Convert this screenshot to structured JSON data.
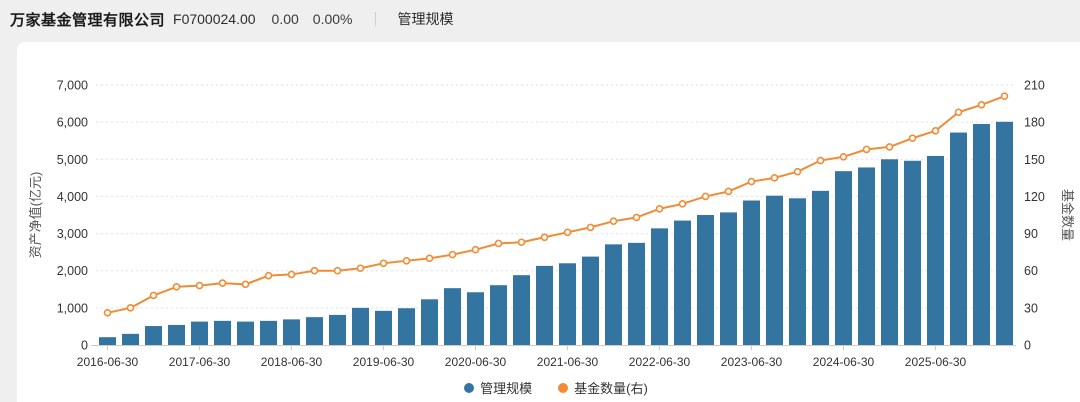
{
  "header": {
    "company": "万家基金管理有限公司",
    "code": "F0700024.00",
    "value": "0.00",
    "change_pct": "0.00%",
    "tab": "管理规模"
  },
  "chart_data": {
    "type": "combo",
    "categories": [
      "2016-06-30",
      "2016-09-30",
      "2016-12-31",
      "2017-03-31",
      "2017-06-30",
      "2017-09-30",
      "2017-12-31",
      "2018-03-31",
      "2018-06-30",
      "2018-09-30",
      "2018-12-31",
      "2019-03-31",
      "2019-06-30",
      "2019-09-30",
      "2019-12-31",
      "2020-03-31",
      "2020-06-30",
      "2020-09-30",
      "2020-12-31",
      "2021-03-31",
      "2021-06-30",
      "2021-09-30",
      "2021-12-31",
      "2022-03-31",
      "2022-06-30",
      "2022-09-30",
      "2022-12-31",
      "2023-03-31",
      "2023-06-30",
      "2023-09-30",
      "2023-12-31",
      "2024-03-31",
      "2024-06-30",
      "2024-09-30",
      "2024-12-31",
      "2025-03-31",
      "2025-06-30",
      "2025-09-30",
      "2025-12-31",
      "2026-03-31"
    ],
    "series": [
      {
        "name": "管理规模",
        "type": "bar",
        "y_axis": "left",
        "color": "#3474a0",
        "values": [
          210,
          300,
          510,
          540,
          630,
          650,
          630,
          650,
          690,
          750,
          810,
          1000,
          920,
          990,
          1230,
          1530,
          1420,
          1610,
          1880,
          2130,
          2200,
          2380,
          2710,
          2750,
          3140,
          3350,
          3500,
          3570,
          3890,
          4020,
          3950,
          4150,
          4680,
          4780,
          5000,
          4960,
          5090,
          5720,
          5950,
          6010
        ]
      },
      {
        "name": "基金数量(右)",
        "type": "line",
        "y_axis": "right",
        "color": "#f08c35",
        "marker": "hollow-circle",
        "values": [
          26,
          30,
          40,
          47,
          48,
          50,
          49,
          56,
          57,
          60,
          60,
          62,
          66,
          68,
          70,
          73,
          77,
          82,
          83,
          87,
          91,
          95,
          100,
          103,
          110,
          114,
          120,
          124,
          132,
          135,
          140,
          149,
          152,
          158,
          160,
          167,
          173,
          188,
          194,
          201
        ]
      }
    ],
    "left_axis": {
      "title": "资产净值(亿元)",
      "min": 0,
      "max": 7000,
      "step": 1000,
      "tick_labels": [
        "0",
        "1,000",
        "2,000",
        "3,000",
        "4,000",
        "5,000",
        "6,000",
        "7,000"
      ]
    },
    "right_axis": {
      "title": "基金数量",
      "min": 0,
      "max": 210,
      "step": 30,
      "tick_labels": [
        "0",
        "30",
        "60",
        "90",
        "120",
        "150",
        "180",
        "210"
      ]
    },
    "x_axis": {
      "tick_every": 4,
      "visible_tick_labels": [
        "2016-06-30",
        "2017-06-30",
        "2018-06-30",
        "2019-06-30",
        "2020-06-30",
        "2021-06-30",
        "2022-06-30",
        "2023-06-30",
        "2024-06-30",
        "2025-06-30"
      ]
    },
    "grid": "dotted-horizontal",
    "legend_position": "bottom-center",
    "legend": [
      {
        "label": "管理规模",
        "color": "#3474a0"
      },
      {
        "label": "基金数量(右)",
        "color": "#f08c35"
      }
    ]
  }
}
